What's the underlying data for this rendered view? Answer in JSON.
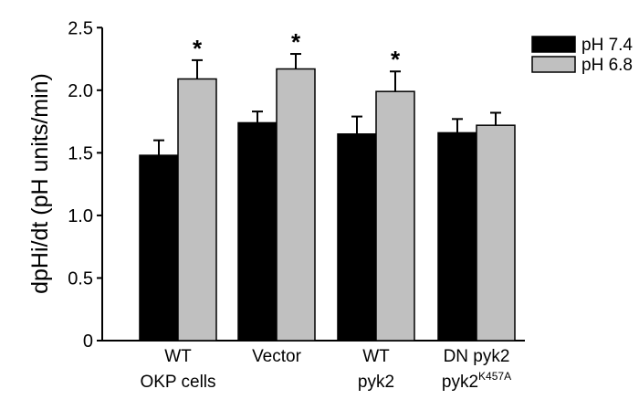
{
  "chart_data": {
    "type": "bar",
    "title": "",
    "ylabel": "dpHi/dt (pH units/min)",
    "xlabel": "",
    "ylim": [
      0,
      2.5
    ],
    "yticks": [
      "0",
      "0.5",
      "1.0",
      "1.5",
      "2.0",
      "2.5"
    ],
    "ytick_values": [
      0,
      0.5,
      1.0,
      1.5,
      2.0,
      2.5
    ],
    "categories": [
      {
        "line1": "WT",
        "line2": "OKP cells",
        "sup": ""
      },
      {
        "line1": "Vector",
        "line2": "",
        "sup": ""
      },
      {
        "line1": "WT",
        "line2": "pyk2",
        "sup": ""
      },
      {
        "line1": "DN pyk2",
        "line2": "pyk2",
        "sup": "K457A"
      }
    ],
    "series": [
      {
        "name": "pH 7.4",
        "color": "#000000",
        "values": [
          1.48,
          1.74,
          1.65,
          1.66
        ],
        "errors": [
          0.12,
          0.09,
          0.14,
          0.11
        ],
        "significant": [
          false,
          false,
          false,
          false
        ]
      },
      {
        "name": "pH 6.8",
        "color": "#c0c0c0",
        "values": [
          2.09,
          2.17,
          1.99,
          1.72
        ],
        "errors": [
          0.15,
          0.12,
          0.16,
          0.1
        ],
        "significant": [
          true,
          true,
          true,
          false
        ]
      }
    ],
    "significance_marker": "*",
    "legend_position": "top-right",
    "grid": false
  }
}
